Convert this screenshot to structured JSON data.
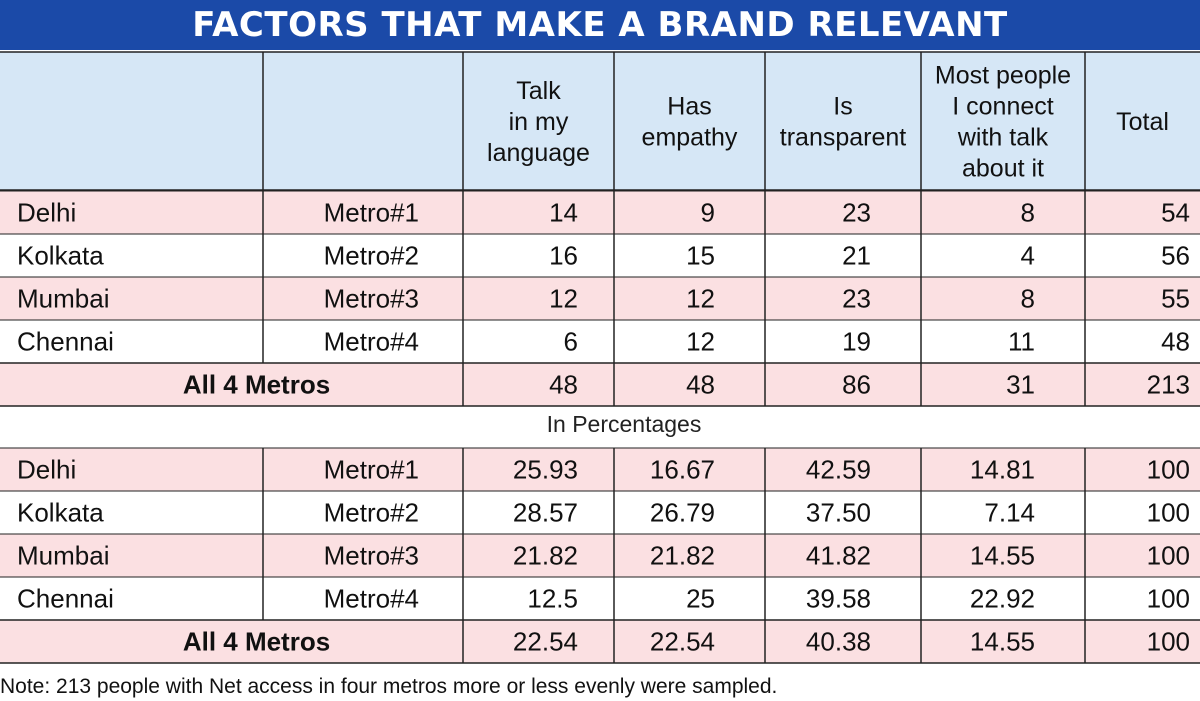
{
  "title": "FACTORS THAT MAKE A BRAND RELEVANT",
  "colors": {
    "title_bg": "#1b4aa8",
    "header_bg": "#d6e7f6",
    "row_pink": "#fbe0e2",
    "row_white": "#ffffff",
    "lines": "#222222"
  },
  "chart_data": {
    "type": "table",
    "title": "FACTORS THAT MAKE A BRAND RELEVANT",
    "columns": [
      [
        "Talk",
        "in my",
        "language"
      ],
      [
        "Has",
        "empathy"
      ],
      [
        "Is",
        "transparent"
      ],
      [
        "Most people",
        "I connect",
        "with talk",
        "about it"
      ],
      [
        "Total"
      ]
    ],
    "counts": {
      "rows": [
        {
          "city": "Delhi",
          "metro": "Metro#1",
          "values": [
            "14",
            "9",
            "23",
            "8",
            "54"
          ]
        },
        {
          "city": "Kolkata",
          "metro": "Metro#2",
          "values": [
            "16",
            "15",
            "21",
            "4",
            "56"
          ]
        },
        {
          "city": "Mumbai",
          "metro": "Metro#3",
          "values": [
            "12",
            "12",
            "23",
            "8",
            "55"
          ]
        },
        {
          "city": "Chennai",
          "metro": "Metro#4",
          "values": [
            "6",
            "12",
            "19",
            "11",
            "48"
          ]
        }
      ],
      "total": {
        "label": "All 4 Metros",
        "values": [
          "48",
          "48",
          "86",
          "31",
          "213"
        ]
      }
    },
    "percent_label": "In Percentages",
    "percentages": {
      "rows": [
        {
          "city": "Delhi",
          "metro": "Metro#1",
          "values": [
            "25.93",
            "16.67",
            "42.59",
            "14.81",
            "100"
          ]
        },
        {
          "city": "Kolkata",
          "metro": "Metro#2",
          "values": [
            "28.57",
            "26.79",
            "37.50",
            "7.14",
            "100"
          ]
        },
        {
          "city": "Mumbai",
          "metro": "Metro#3",
          "values": [
            "21.82",
            "21.82",
            "41.82",
            "14.55",
            "100"
          ]
        },
        {
          "city": "Chennai",
          "metro": "Metro#4",
          "values": [
            "12.5",
            "25",
            "39.58",
            "22.92",
            "100"
          ]
        }
      ],
      "total": {
        "label": "All 4 Metros",
        "values": [
          "22.54",
          "22.54",
          "40.38",
          "14.55",
          "100"
        ]
      }
    }
  },
  "note": "Note: 213 people with Net access in four metros more or less evenly were sampled."
}
